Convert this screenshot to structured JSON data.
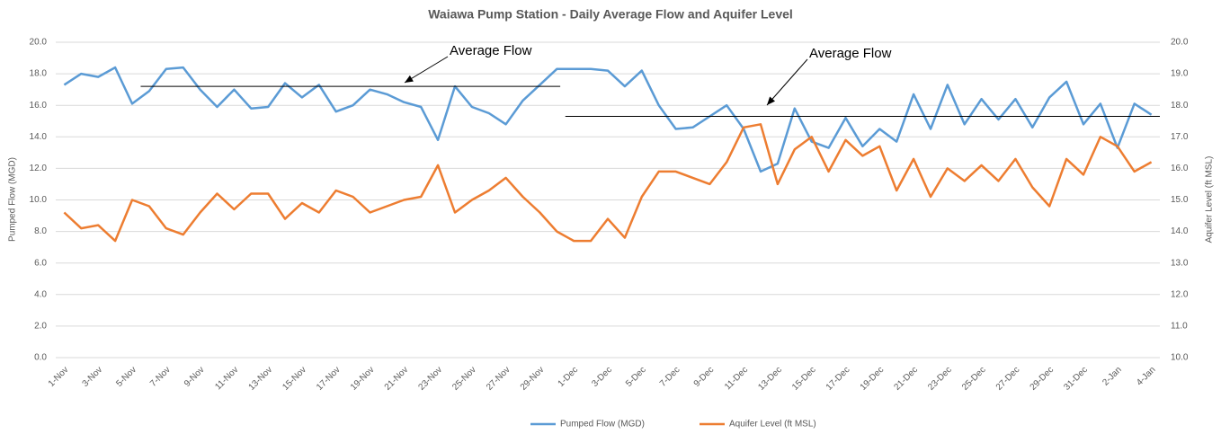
{
  "chart_data": {
    "type": "line",
    "title": "Waiawa Pump Station - Daily Average Flow and Aquifer Level",
    "y_label": "Pumped Flow (MGD)",
    "y2_label": "Aquifer Level (ft MSL)",
    "categories": [
      "1-Nov",
      null,
      "3-Nov",
      null,
      "5-Nov",
      null,
      "7-Nov",
      null,
      "9-Nov",
      null,
      "11-Nov",
      null,
      "13-Nov",
      null,
      "15-Nov",
      null,
      "17-Nov",
      null,
      "19-Nov",
      null,
      "21-Nov",
      null,
      "23-Nov",
      null,
      "25-Nov",
      null,
      "27-Nov",
      null,
      "29-Nov",
      null,
      "1-Dec",
      null,
      "3-Dec",
      null,
      "5-Dec",
      null,
      "7-Dec",
      null,
      "9-Dec",
      null,
      "11-Dec",
      null,
      "13-Dec",
      null,
      "15-Dec",
      null,
      "17-Dec",
      null,
      "19-Dec",
      null,
      "21-Dec",
      null,
      "23-Dec",
      null,
      "25-Dec",
      null,
      "27-Dec",
      null,
      "29-Dec",
      null,
      "31-Dec",
      null,
      "2-Jan",
      null,
      "4-Jan"
    ],
    "series": [
      {
        "name": "Pumped Flow (MGD)",
        "color": "#5b9bd5",
        "values": [
          17.3,
          18.0,
          17.8,
          18.4,
          16.1,
          16.9,
          18.3,
          18.4,
          17.0,
          15.9,
          17.0,
          15.8,
          15.9,
          17.4,
          16.5,
          17.3,
          15.6,
          16.0,
          17.0,
          16.7,
          16.2,
          15.9,
          13.8,
          17.2,
          15.9,
          15.5,
          14.8,
          16.3,
          17.3,
          18.3,
          18.3,
          18.3,
          18.2,
          17.2,
          18.2,
          16.0,
          14.5,
          14.6,
          15.3,
          16.0,
          14.5,
          11.8,
          12.3,
          15.8,
          13.7,
          13.3,
          15.2,
          13.4,
          14.5,
          13.7,
          16.7,
          14.5,
          17.3,
          14.8,
          16.4,
          15.1,
          16.4,
          14.6,
          16.5,
          17.5,
          14.8,
          16.1,
          13.3,
          16.1,
          15.4
        ]
      },
      {
        "name": "Aquifer Level (ft MSL)",
        "color": "#ed7d31",
        "axis": "y2",
        "values": [
          14.6,
          14.1,
          14.2,
          13.7,
          15.0,
          14.8,
          14.1,
          13.9,
          14.6,
          15.2,
          14.7,
          15.2,
          15.2,
          14.4,
          14.9,
          14.6,
          15.3,
          15.1,
          14.6,
          14.8,
          15.0,
          15.1,
          16.1,
          14.6,
          15.0,
          15.3,
          15.7,
          15.1,
          14.6,
          14.0,
          13.7,
          13.7,
          14.4,
          13.8,
          15.1,
          15.9,
          15.9,
          15.7,
          15.5,
          16.2,
          17.3,
          17.4,
          15.5,
          16.6,
          17.0,
          15.9,
          16.9,
          16.4,
          16.7,
          15.3,
          16.3,
          15.1,
          16.0,
          15.6,
          16.1,
          15.6,
          16.3,
          15.4,
          14.8,
          16.3,
          15.8,
          17.0,
          16.7,
          15.9,
          16.2
        ]
      }
    ],
    "annotations": [
      {
        "text": "Average Flow",
        "value": 17.2
      },
      {
        "text": "Average Flow",
        "value": 15.3
      }
    ],
    "ylim": [
      0,
      20
    ],
    "yticks": [
      {
        "value": 0,
        "label": "0.0"
      },
      {
        "value": 2,
        "label": "2.0"
      },
      {
        "value": 4,
        "label": "4.0"
      },
      {
        "value": 6,
        "label": "6.0"
      },
      {
        "value": 8,
        "label": "8.0"
      },
      {
        "value": 10,
        "label": "10.0"
      },
      {
        "value": 12,
        "label": "12.0"
      },
      {
        "value": 14,
        "label": "14.0"
      },
      {
        "value": 16,
        "label": "16.0"
      },
      {
        "value": 18,
        "label": "18.0"
      },
      {
        "value": 20,
        "label": "20.0"
      }
    ],
    "y2lim": [
      10,
      20
    ],
    "y2ticks": [
      {
        "value": 10,
        "label": "10.0"
      },
      {
        "value": 11,
        "label": "11.0"
      },
      {
        "value": 12,
        "label": "12.0"
      },
      {
        "value": 13,
        "label": "13.0"
      },
      {
        "value": 14,
        "label": "14.0"
      },
      {
        "value": 15,
        "label": "15.0"
      },
      {
        "value": 16,
        "label": "16.0"
      },
      {
        "value": 17,
        "label": "17.0"
      },
      {
        "value": 18,
        "label": "18.0"
      },
      {
        "value": 19,
        "label": "19.0"
      },
      {
        "value": 20,
        "label": "20.0"
      }
    ],
    "grid": true,
    "legend": "bottom"
  }
}
